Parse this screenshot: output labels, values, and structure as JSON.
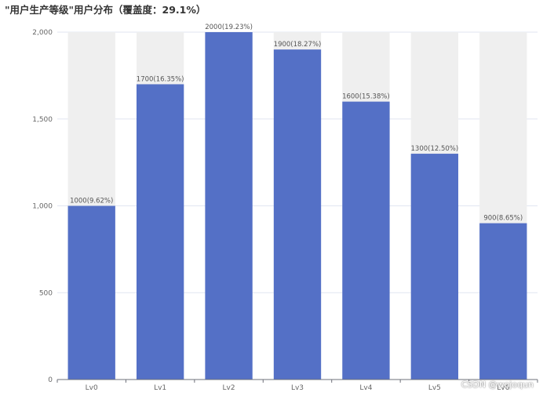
{
  "chart_data": {
    "type": "bar",
    "title": "\"用户生产等级\"用户分布（覆盖度：29.1%）",
    "categories": [
      "Lv0",
      "Lv1",
      "Lv2",
      "Lv3",
      "Lv4",
      "Lv5",
      "Lv6"
    ],
    "values": [
      1000,
      1700,
      2000,
      1900,
      1600,
      1300,
      900
    ],
    "data_labels": [
      "1000(9.62%)",
      "1700(16.35%)",
      "2000(19.23%)",
      "1900(18.27%)",
      "1600(15.38%)",
      "1300(12.50%)",
      "900(8.65%)"
    ],
    "y_ticks": [
      "0",
      "500",
      "1,000",
      "1,500",
      "2,000"
    ],
    "y_tick_values": [
      0,
      500,
      1000,
      1500,
      2000
    ],
    "ylim": [
      0,
      2000
    ],
    "background_bar_max": 2000,
    "grid": true,
    "colors": {
      "bar": "#5470c6",
      "background_bar": "#efefef",
      "grid": "#e0e6f1",
      "axis": "#6e7079"
    }
  },
  "watermark": "CSDN @wojoqun"
}
